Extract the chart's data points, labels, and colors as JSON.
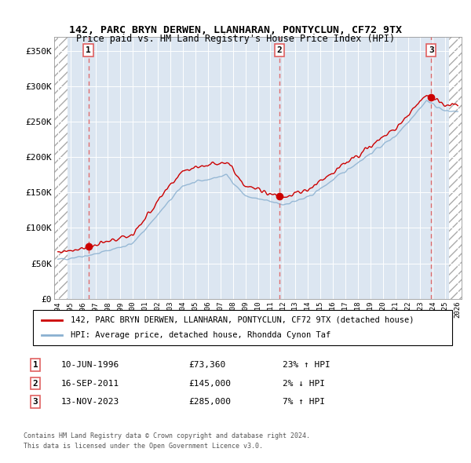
{
  "title": "142, PARC BRYN DERWEN, LLANHARAN, PONTYCLUN, CF72 9TX",
  "subtitle": "Price paid vs. HM Land Registry's House Price Index (HPI)",
  "red_label": "142, PARC BRYN DERWEN, LLANHARAN, PONTYCLUN, CF72 9TX (detached house)",
  "blue_label": "HPI: Average price, detached house, Rhondda Cynon Taf",
  "footer1": "Contains HM Land Registry data © Crown copyright and database right 2024.",
  "footer2": "This data is licensed under the Open Government Licence v3.0.",
  "transactions": [
    {
      "num": 1,
      "date": "10-JUN-1996",
      "price": 73360,
      "hpi_diff": "23% ↑ HPI",
      "year": 1996.44
    },
    {
      "num": 2,
      "date": "16-SEP-2011",
      "price": 145000,
      "hpi_diff": "2% ↓ HPI",
      "year": 2011.71
    },
    {
      "num": 3,
      "date": "13-NOV-2023",
      "price": 285000,
      "hpi_diff": "7% ↑ HPI",
      "year": 2023.87
    }
  ],
  "ylim": [
    0,
    370000
  ],
  "xlim_start": 1993.7,
  "xlim_end": 2026.3,
  "background_color": "#dce6f1",
  "red_color": "#cc0000",
  "blue_color": "#8ab0d0",
  "dashed_red": "#e06060"
}
